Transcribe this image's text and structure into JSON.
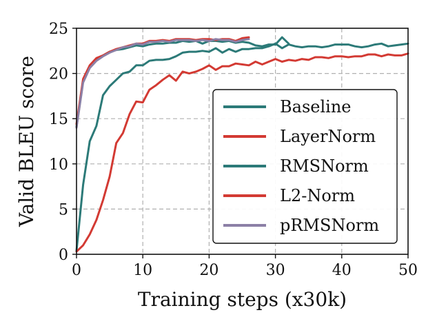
{
  "chart_data": {
    "type": "line",
    "xlabel": "Training steps (x30k)",
    "ylabel": "Valid BLEU score",
    "xlim": [
      0,
      50
    ],
    "ylim": [
      0,
      25
    ],
    "xticks": [
      0,
      10,
      20,
      30,
      40,
      50
    ],
    "yticks": [
      0,
      5,
      10,
      15,
      20,
      25
    ],
    "xtick_labels": [
      "0",
      "10",
      "20",
      "30",
      "40",
      "50"
    ],
    "ytick_labels": [
      "0",
      "5",
      "10",
      "15",
      "20",
      "25"
    ],
    "grid": true,
    "legend_position": "center-right",
    "series": [
      {
        "name": "Baseline",
        "color": "#2c7a78",
        "x": [
          0,
          1,
          2,
          3,
          4,
          5,
          6,
          7,
          8,
          9,
          10,
          11,
          12,
          13,
          14,
          15,
          16,
          17,
          18,
          19,
          20,
          21,
          22,
          23,
          24,
          25,
          26,
          27,
          28,
          29,
          30,
          31,
          32,
          33,
          34,
          35,
          36,
          37,
          38,
          39,
          40,
          41,
          42,
          43,
          44,
          45,
          46,
          47,
          48,
          49,
          50
        ],
        "y": [
          0.4,
          7.7,
          12.5,
          14.2,
          17.6,
          18.6,
          19.3,
          20.0,
          20.2,
          20.9,
          20.9,
          21.4,
          21.5,
          21.5,
          21.6,
          21.9,
          22.3,
          22.4,
          22.4,
          22.5,
          22.4,
          22.8,
          22.3,
          22.7,
          22.4,
          22.7,
          22.7,
          22.8,
          22.8,
          23.0,
          23.3,
          22.8,
          23.2,
          23.0,
          22.9,
          23.0,
          23.0,
          22.9,
          23.0,
          23.2,
          23.2,
          23.2,
          23.0,
          22.9,
          23.0,
          23.2,
          23.3,
          23.0,
          23.1,
          23.2,
          23.3
        ]
      },
      {
        "name": "LayerNorm",
        "color": "#d33a33",
        "x": [
          0,
          1,
          2,
          3,
          4,
          5,
          6,
          7,
          8,
          9,
          10,
          11,
          12,
          13,
          14,
          15,
          16,
          17,
          18,
          19,
          20,
          21,
          22,
          23,
          24,
          25,
          26,
          27,
          28,
          29,
          30,
          31,
          32,
          33,
          34,
          35,
          36,
          37,
          38,
          39,
          40,
          41,
          42,
          43,
          44,
          45,
          46,
          47,
          48,
          49,
          50
        ],
        "y": [
          0.3,
          1.0,
          2.2,
          3.8,
          6.0,
          8.6,
          12.3,
          13.4,
          15.5,
          16.9,
          16.8,
          18.2,
          18.7,
          19.3,
          19.8,
          19.2,
          20.2,
          20.0,
          20.2,
          20.5,
          20.9,
          20.4,
          20.8,
          20.8,
          21.1,
          21.0,
          20.9,
          21.3,
          21.0,
          21.3,
          21.6,
          21.3,
          21.5,
          21.4,
          21.6,
          21.5,
          21.8,
          21.8,
          21.7,
          21.9,
          21.9,
          21.8,
          21.9,
          21.9,
          22.1,
          22.1,
          21.9,
          22.1,
          22.0,
          22.0,
          22.2
        ]
      },
      {
        "name": "RMSNorm",
        "color": "#2c7a78",
        "x": [
          0,
          1,
          2,
          3,
          4,
          5,
          6,
          7,
          8,
          9,
          10,
          11,
          12,
          13,
          14,
          15,
          16,
          17,
          18,
          19,
          20,
          21,
          22,
          23,
          24,
          25,
          26,
          27,
          28,
          29,
          30,
          31,
          32
        ],
        "y": [
          14.1,
          19.2,
          20.7,
          21.5,
          22.0,
          22.4,
          22.6,
          22.7,
          22.9,
          23.1,
          23.0,
          23.2,
          23.3,
          23.3,
          23.4,
          23.4,
          23.6,
          23.5,
          23.6,
          23.3,
          23.6,
          23.6,
          23.5,
          23.6,
          23.4,
          23.5,
          23.4,
          23.1,
          23.0,
          23.2,
          23.2,
          24.0,
          23.3
        ]
      },
      {
        "name": "L2-Norm",
        "color": "#d33a33",
        "x": [
          0,
          1,
          2,
          3,
          4,
          5,
          6,
          7,
          8,
          9,
          10,
          11,
          12,
          13,
          14,
          15,
          16,
          17,
          18,
          19,
          20,
          21,
          22,
          23,
          24,
          25,
          26
        ],
        "y": [
          14.4,
          19.4,
          20.9,
          21.7,
          22.0,
          22.4,
          22.7,
          22.9,
          23.1,
          23.3,
          23.3,
          23.6,
          23.6,
          23.7,
          23.6,
          23.8,
          23.8,
          23.8,
          23.7,
          23.8,
          23.8,
          23.7,
          23.8,
          23.8,
          23.6,
          23.9,
          24.0
        ]
      },
      {
        "name": "pRMSNorm",
        "color": "#8c80a6",
        "x": [
          0,
          1,
          2,
          3,
          4,
          5,
          6,
          7,
          8,
          9,
          10,
          11,
          12,
          13,
          14,
          15,
          16,
          17,
          18,
          19,
          20,
          21,
          22,
          23,
          24,
          25,
          26
        ],
        "y": [
          14.0,
          19.0,
          20.6,
          21.4,
          21.9,
          22.3,
          22.6,
          22.9,
          23.0,
          23.3,
          23.2,
          23.5,
          23.5,
          23.6,
          23.5,
          23.7,
          23.7,
          23.7,
          23.6,
          23.7,
          23.6,
          23.8,
          23.7,
          23.7,
          23.5,
          23.7,
          23.8
        ]
      }
    ]
  }
}
